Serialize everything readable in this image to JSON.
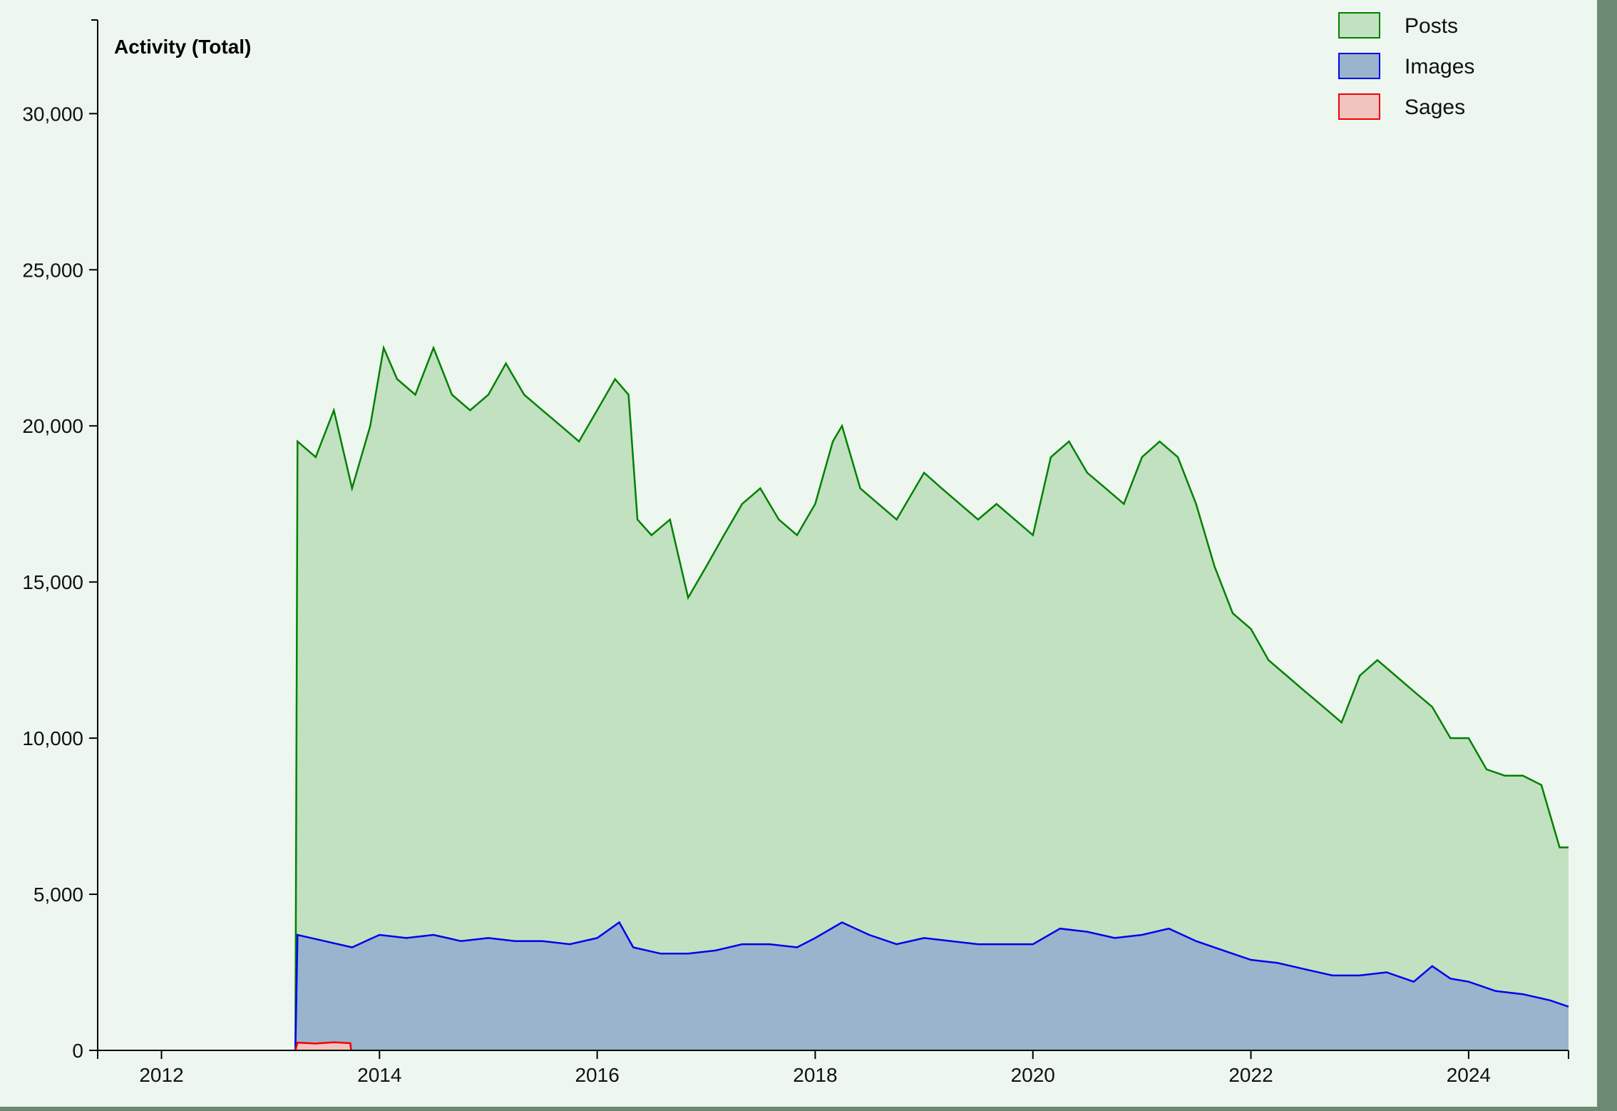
{
  "chart_data": {
    "type": "area",
    "title": "Activity (Total)",
    "xlabel": "",
    "ylabel": "",
    "x_range": [
      "2011-06-01",
      "2024-12-01"
    ],
    "ylim": [
      0,
      33000
    ],
    "x_ticks": [
      {
        "date": "2012-01-01",
        "label": "2012"
      },
      {
        "date": "2014-01-01",
        "label": "2014"
      },
      {
        "date": "2016-01-01",
        "label": "2016"
      },
      {
        "date": "2018-01-01",
        "label": "2018"
      },
      {
        "date": "2020-01-01",
        "label": "2020"
      },
      {
        "date": "2022-01-01",
        "label": "2022"
      },
      {
        "date": "2024-01-01",
        "label": "2024"
      }
    ],
    "y_ticks": [
      {
        "value": 0,
        "label": "0"
      },
      {
        "value": 5000,
        "label": "5,000"
      },
      {
        "value": 10000,
        "label": "10,000"
      },
      {
        "value": 15000,
        "label": "15,000"
      },
      {
        "value": 20000,
        "label": "20,000"
      },
      {
        "value": 25000,
        "label": "25,000"
      },
      {
        "value": 30000,
        "label": "30,000"
      }
    ],
    "legend_position": "top-right",
    "grid": false,
    "series": [
      {
        "name": "Posts",
        "stroke": "#008000",
        "fill": "#c1e1c1",
        "points": [
          [
            "2013-03-25",
            0
          ],
          [
            "2013-04-01",
            19500
          ],
          [
            "2013-06-01",
            19000
          ],
          [
            "2013-08-01",
            20500
          ],
          [
            "2013-10-01",
            18000
          ],
          [
            "2013-12-01",
            20000
          ],
          [
            "2014-01-15",
            22500
          ],
          [
            "2014-03-01",
            21500
          ],
          [
            "2014-05-01",
            21000
          ],
          [
            "2014-07-01",
            22500
          ],
          [
            "2014-09-01",
            21000
          ],
          [
            "2014-11-01",
            20500
          ],
          [
            "2015-01-01",
            21000
          ],
          [
            "2015-03-01",
            22000
          ],
          [
            "2015-05-01",
            21000
          ],
          [
            "2015-07-01",
            20500
          ],
          [
            "2015-09-01",
            20000
          ],
          [
            "2015-11-01",
            19500
          ],
          [
            "2016-01-01",
            20500
          ],
          [
            "2016-03-01",
            21500
          ],
          [
            "2016-04-15",
            21000
          ],
          [
            "2016-05-15",
            17000
          ],
          [
            "2016-07-01",
            16500
          ],
          [
            "2016-09-01",
            17000
          ],
          [
            "2016-11-01",
            14500
          ],
          [
            "2017-01-01",
            15500
          ],
          [
            "2017-03-01",
            16500
          ],
          [
            "2017-05-01",
            17500
          ],
          [
            "2017-07-01",
            18000
          ],
          [
            "2017-09-01",
            17000
          ],
          [
            "2017-11-01",
            16500
          ],
          [
            "2018-01-01",
            17500
          ],
          [
            "2018-03-01",
            19500
          ],
          [
            "2018-04-01",
            20000
          ],
          [
            "2018-06-01",
            18000
          ],
          [
            "2018-08-01",
            17500
          ],
          [
            "2018-10-01",
            17000
          ],
          [
            "2019-01-01",
            18500
          ],
          [
            "2019-03-01",
            18000
          ],
          [
            "2019-05-01",
            17500
          ],
          [
            "2019-07-01",
            17000
          ],
          [
            "2019-09-01",
            17500
          ],
          [
            "2019-11-01",
            17000
          ],
          [
            "2020-01-01",
            16500
          ],
          [
            "2020-03-01",
            19000
          ],
          [
            "2020-05-01",
            19500
          ],
          [
            "2020-07-01",
            18500
          ],
          [
            "2020-09-01",
            18000
          ],
          [
            "2020-11-01",
            17500
          ],
          [
            "2021-01-01",
            19000
          ],
          [
            "2021-03-01",
            19500
          ],
          [
            "2021-05-01",
            19000
          ],
          [
            "2021-07-01",
            17500
          ],
          [
            "2021-09-01",
            15500
          ],
          [
            "2021-11-01",
            14000
          ],
          [
            "2022-01-01",
            13500
          ],
          [
            "2022-03-01",
            12500
          ],
          [
            "2022-05-01",
            12000
          ],
          [
            "2022-07-01",
            11500
          ],
          [
            "2022-09-01",
            11000
          ],
          [
            "2022-11-01",
            10500
          ],
          [
            "2023-01-01",
            12000
          ],
          [
            "2023-03-01",
            12500
          ],
          [
            "2023-05-01",
            12000
          ],
          [
            "2023-07-01",
            11500
          ],
          [
            "2023-09-01",
            11000
          ],
          [
            "2023-11-01",
            10000
          ],
          [
            "2024-01-01",
            10000
          ],
          [
            "2024-03-01",
            9000
          ],
          [
            "2024-05-01",
            8800
          ],
          [
            "2024-07-01",
            8800
          ],
          [
            "2024-09-01",
            8500
          ],
          [
            "2024-11-01",
            6500
          ],
          [
            "2024-12-01",
            6500
          ]
        ]
      },
      {
        "name": "Images",
        "stroke": "#0000ee",
        "fill": "#99b4cc",
        "points": [
          [
            "2013-03-25",
            0
          ],
          [
            "2013-04-01",
            3700
          ],
          [
            "2013-07-01",
            3500
          ],
          [
            "2013-10-01",
            3300
          ],
          [
            "2014-01-01",
            3700
          ],
          [
            "2014-04-01",
            3600
          ],
          [
            "2014-07-01",
            3700
          ],
          [
            "2014-10-01",
            3500
          ],
          [
            "2015-01-01",
            3600
          ],
          [
            "2015-04-01",
            3500
          ],
          [
            "2015-07-01",
            3500
          ],
          [
            "2015-10-01",
            3400
          ],
          [
            "2016-01-01",
            3600
          ],
          [
            "2016-03-15",
            4100
          ],
          [
            "2016-05-01",
            3300
          ],
          [
            "2016-08-01",
            3100
          ],
          [
            "2016-11-01",
            3100
          ],
          [
            "2017-02-01",
            3200
          ],
          [
            "2017-05-01",
            3400
          ],
          [
            "2017-08-01",
            3400
          ],
          [
            "2017-11-01",
            3300
          ],
          [
            "2018-01-01",
            3600
          ],
          [
            "2018-04-01",
            4100
          ],
          [
            "2018-07-01",
            3700
          ],
          [
            "2018-10-01",
            3400
          ],
          [
            "2019-01-01",
            3600
          ],
          [
            "2019-04-01",
            3500
          ],
          [
            "2019-07-01",
            3400
          ],
          [
            "2019-10-01",
            3400
          ],
          [
            "2020-01-01",
            3400
          ],
          [
            "2020-04-01",
            3900
          ],
          [
            "2020-07-01",
            3800
          ],
          [
            "2020-10-01",
            3600
          ],
          [
            "2021-01-01",
            3700
          ],
          [
            "2021-04-01",
            3900
          ],
          [
            "2021-07-01",
            3500
          ],
          [
            "2021-10-01",
            3200
          ],
          [
            "2022-01-01",
            2900
          ],
          [
            "2022-04-01",
            2800
          ],
          [
            "2022-07-01",
            2600
          ],
          [
            "2022-10-01",
            2400
          ],
          [
            "2023-01-01",
            2400
          ],
          [
            "2023-04-01",
            2500
          ],
          [
            "2023-07-01",
            2200
          ],
          [
            "2023-09-01",
            2700
          ],
          [
            "2023-11-01",
            2300
          ],
          [
            "2024-01-01",
            2200
          ],
          [
            "2024-04-01",
            1900
          ],
          [
            "2024-07-01",
            1800
          ],
          [
            "2024-10-01",
            1600
          ],
          [
            "2024-12-01",
            1400
          ]
        ]
      },
      {
        "name": "Sages",
        "stroke": "#ee0000",
        "fill": "#f2c4bf",
        "points": [
          [
            "2013-03-25",
            0
          ],
          [
            "2013-04-01",
            250
          ],
          [
            "2013-06-01",
            220
          ],
          [
            "2013-08-01",
            260
          ],
          [
            "2013-09-25",
            230
          ],
          [
            "2013-09-28",
            0
          ]
        ]
      }
    ]
  }
}
